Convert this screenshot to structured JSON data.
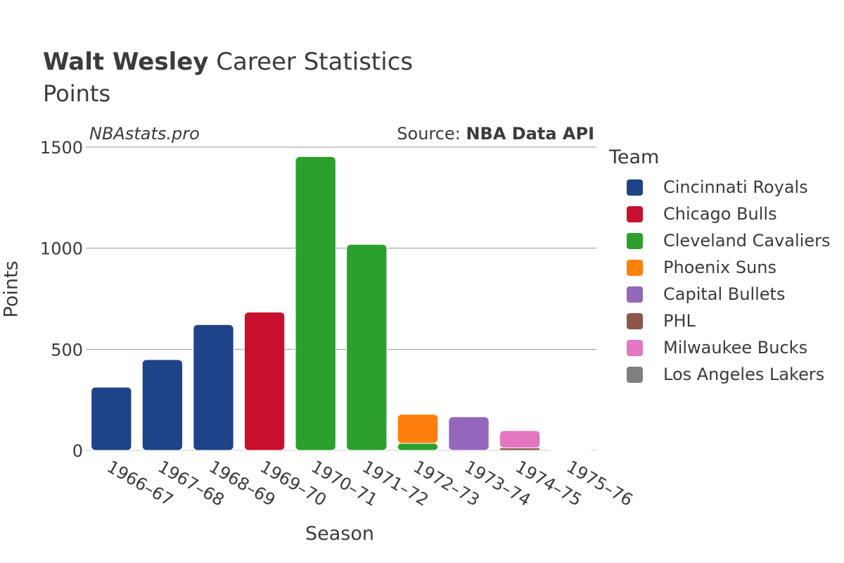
{
  "header": {
    "title_bold": "Walt Wesley",
    "title_rest": " Career Statistics",
    "subtitle": "Points",
    "watermark": "NBAstats.pro",
    "source_prefix": "Source: ",
    "source_bold": "NBA Data API"
  },
  "chart_data": {
    "type": "bar",
    "stacked": true,
    "title": "Walt Wesley Career Statistics",
    "subtitle": "Points",
    "xlabel": "Season",
    "ylabel": "Points",
    "ylim": [
      0,
      1500
    ],
    "yticks": [
      0,
      500,
      1000,
      1500
    ],
    "grid": true,
    "legend_title": "Team",
    "legend_position": "right",
    "categories": [
      "1966–67",
      "1967–68",
      "1968–69",
      "1969–70",
      "1970–71",
      "1971–72",
      "1972–73",
      "1973–74",
      "1974–75",
      "1975–76"
    ],
    "series": [
      {
        "name": "Cincinnati Royals",
        "color": "#1f4387",
        "values": [
          313,
          449,
          622,
          0,
          0,
          0,
          0,
          0,
          0,
          0
        ]
      },
      {
        "name": "Chicago Bulls",
        "color": "#c8102e",
        "values": [
          0,
          0,
          0,
          684,
          0,
          0,
          0,
          0,
          0,
          0
        ]
      },
      {
        "name": "Cleveland Cavaliers",
        "color": "#2ca02c",
        "values": [
          0,
          0,
          0,
          0,
          1453,
          1019,
          35,
          0,
          0,
          0
        ]
      },
      {
        "name": "Phoenix Suns",
        "color": "#ff7f0e",
        "values": [
          0,
          0,
          0,
          0,
          0,
          0,
          144,
          0,
          0,
          0
        ]
      },
      {
        "name": "Capital Bullets",
        "color": "#9467bd",
        "values": [
          0,
          0,
          0,
          0,
          0,
          0,
          0,
          166,
          0,
          0
        ]
      },
      {
        "name": "PHL",
        "color": "#8c564b",
        "values": [
          0,
          0,
          0,
          0,
          0,
          0,
          0,
          0,
          12,
          0
        ]
      },
      {
        "name": "Milwaukee Bucks",
        "color": "#e377c2",
        "values": [
          0,
          0,
          0,
          0,
          0,
          0,
          0,
          0,
          86,
          0
        ]
      },
      {
        "name": "Los Angeles Lakers",
        "color": "#7f7f7f",
        "values": [
          0,
          0,
          0,
          0,
          0,
          0,
          0,
          0,
          0,
          2
        ]
      }
    ]
  }
}
